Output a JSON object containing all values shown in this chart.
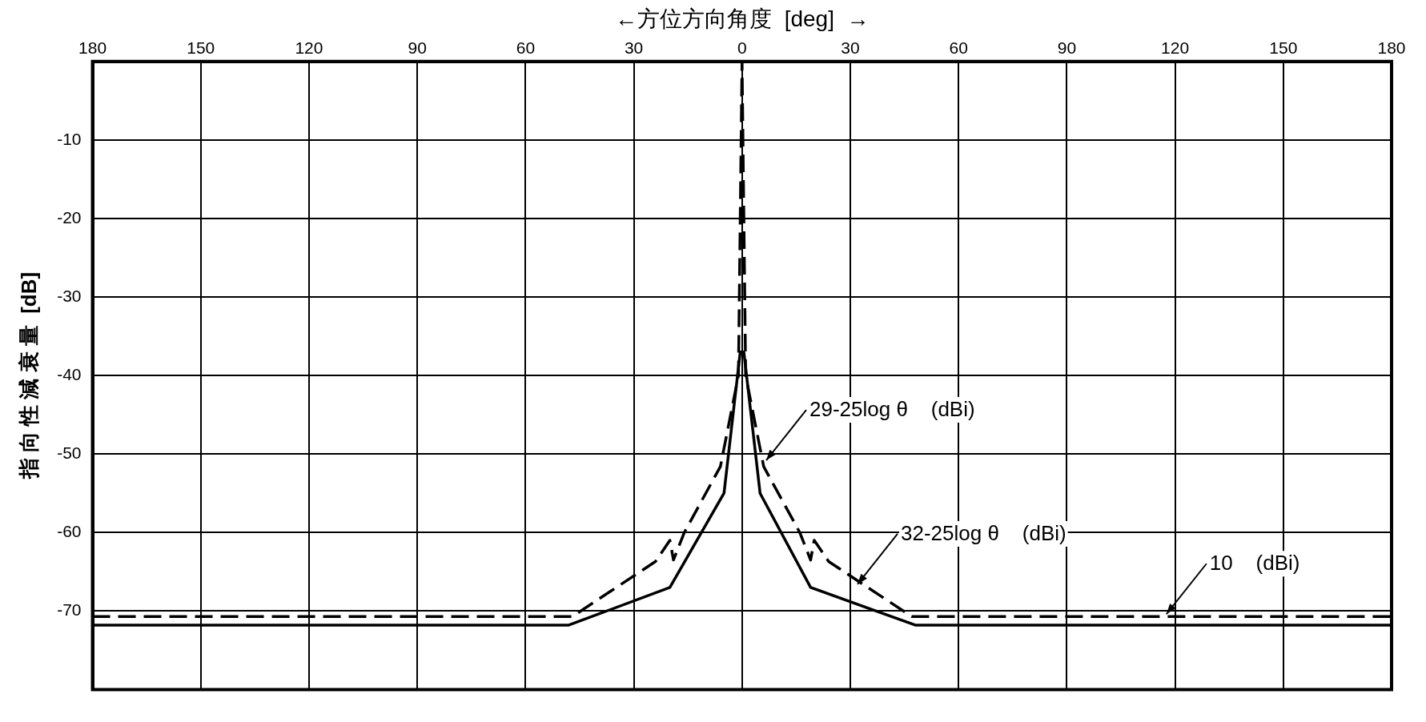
{
  "chart_data": {
    "type": "line",
    "xlabel": "←方位方向角度  [deg]  →",
    "ylabel": "指 向 性 減 衰 量  [dB]",
    "xlim": [
      -180,
      180
    ],
    "xticks": [
      {
        "value": -180,
        "label": "180"
      },
      {
        "value": -150,
        "label": "150"
      },
      {
        "value": -120,
        "label": "120"
      },
      {
        "value": -90,
        "label": "90"
      },
      {
        "value": -60,
        "label": "60"
      },
      {
        "value": -30,
        "label": "30"
      },
      0,
      30,
      60,
      90,
      120,
      150,
      180
    ],
    "ylim": [
      -80,
      0
    ],
    "yticks": [
      -70,
      -60,
      -50,
      -40,
      -30,
      -20,
      -10
    ],
    "grid": true,
    "legend": false,
    "marker": "none",
    "series": [
      {
        "color": "#000000",
        "line_style": "solid",
        "x": [
          -180,
          -48,
          -20,
          -5,
          -0.5,
          0.5,
          5,
          19,
          48,
          180
        ],
        "values": [
          -71.8,
          -71.8,
          -67,
          -55,
          -37,
          -37,
          -55,
          -67,
          -71.8,
          -71.8
        ]
      },
      {
        "color": "#000000",
        "line_style": "dashed",
        "x": [
          -180,
          -47,
          -24,
          -20,
          -19,
          -16,
          -6,
          -1,
          0,
          1,
          6,
          16,
          19,
          20,
          24,
          47,
          180
        ],
        "values": [
          -70.7,
          -70.7,
          -63.7,
          -61,
          -63.5,
          -60,
          -51.6,
          -40,
          0,
          -40,
          -51.6,
          -60,
          -63.5,
          -61,
          -63.7,
          -70.7,
          -70.7
        ]
      }
    ],
    "annotations": [
      {
        "text": "29-25log θ    (dBi)",
        "x": 6.7,
        "y": -50.8
      },
      {
        "text": "32-25log θ    (dBi)",
        "x": 32,
        "y": -66.6
      },
      {
        "text": "10    (dBi)",
        "x": 117.6,
        "y": -70.4
      }
    ]
  }
}
